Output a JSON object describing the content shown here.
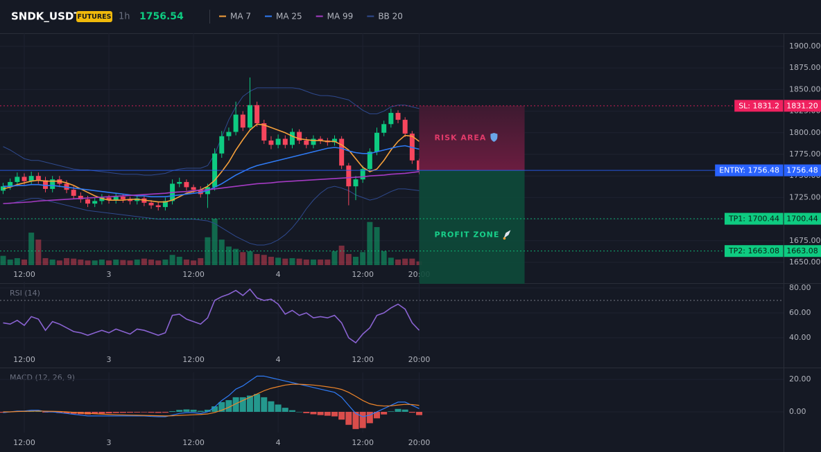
{
  "chart_data": [
    {
      "type": "candlestick",
      "title": "SNDK_USDT",
      "badge": "FUTURES",
      "interval": "1h",
      "last_price": 1756.54,
      "categories": [
        null,
        null,
        null,
        "12:00",
        null,
        null,
        null,
        null,
        null,
        null,
        null,
        null,
        null,
        null,
        null,
        "3",
        null,
        null,
        null,
        null,
        null,
        null,
        null,
        null,
        null,
        null,
        null,
        "12:00",
        null,
        null,
        null,
        null,
        null,
        null,
        null,
        null,
        null,
        null,
        null,
        "4",
        null,
        null,
        null,
        null,
        null,
        null,
        null,
        null,
        null,
        null,
        null,
        "12:00",
        null,
        null,
        null,
        null,
        null,
        null,
        null,
        "20:00"
      ],
      "open": [
        1733,
        1738,
        1743,
        1749,
        1744,
        1750,
        1745,
        1735,
        1746,
        1741,
        1734,
        1727,
        1723,
        1718,
        1721,
        1725,
        1722,
        1726,
        1723,
        1721,
        1724,
        1719,
        1716,
        1714,
        1721,
        1741,
        1743,
        1737,
        1734,
        1729,
        1737,
        1776,
        1796,
        1801,
        1821,
        1806,
        1832,
        1811,
        1791,
        1786,
        1793,
        1786,
        1801,
        1791,
        1786,
        1793,
        1791,
        1789,
        1793,
        1762,
        1738,
        1746,
        1758,
        1778,
        1800,
        1810,
        1823,
        1815,
        1799,
        1768
      ],
      "high": [
        1742,
        1747,
        1754,
        1753,
        1755,
        1754,
        1749,
        1750,
        1750,
        1745,
        1738,
        1731,
        1727,
        1725,
        1729,
        1728,
        1730,
        1729,
        1726,
        1728,
        1727,
        1722,
        1720,
        1725,
        1746,
        1748,
        1746,
        1740,
        1738,
        1741,
        1782,
        1802,
        1806,
        1836,
        1825,
        1864,
        1836,
        1815,
        1796,
        1798,
        1797,
        1805,
        1804,
        1795,
        1797,
        1796,
        1794,
        1797,
        1796,
        1765,
        1750,
        1762,
        1782,
        1806,
        1814,
        1828,
        1826,
        1818,
        1802,
        1770
      ],
      "low": [
        1729,
        1734,
        1738,
        1740,
        1740,
        1741,
        1731,
        1731,
        1737,
        1730,
        1723,
        1719,
        1714,
        1714,
        1717,
        1718,
        1718,
        1719,
        1717,
        1717,
        1715,
        1712,
        1710,
        1710,
        1717,
        1737,
        1733,
        1730,
        1725,
        1713,
        1733,
        1771,
        1791,
        1797,
        1802,
        1802,
        1807,
        1787,
        1781,
        1782,
        1782,
        1782,
        1787,
        1782,
        1782,
        1787,
        1785,
        1785,
        1758,
        1716,
        1722,
        1742,
        1754,
        1774,
        1796,
        1806,
        1811,
        1795,
        1764,
        1752
      ],
      "close": [
        1738,
        1743,
        1749,
        1744,
        1750,
        1745,
        1735,
        1746,
        1741,
        1734,
        1727,
        1723,
        1718,
        1721,
        1725,
        1722,
        1726,
        1723,
        1721,
        1724,
        1719,
        1716,
        1714,
        1721,
        1741,
        1743,
        1737,
        1734,
        1729,
        1737,
        1776,
        1796,
        1801,
        1821,
        1806,
        1832,
        1811,
        1791,
        1786,
        1793,
        1786,
        1801,
        1791,
        1786,
        1793,
        1791,
        1789,
        1793,
        1762,
        1738,
        1746,
        1758,
        1778,
        1800,
        1810,
        1823,
        1815,
        1799,
        1768,
        1756.54
      ],
      "volume": [
        20,
        12,
        15,
        12,
        70,
        55,
        15,
        12,
        10,
        15,
        14,
        12,
        10,
        10,
        12,
        10,
        12,
        11,
        10,
        12,
        14,
        12,
        10,
        12,
        22,
        18,
        12,
        10,
        15,
        60,
        100,
        55,
        40,
        35,
        28,
        30,
        24,
        22,
        18,
        16,
        14,
        15,
        14,
        12,
        12,
        12,
        12,
        30,
        42,
        24,
        18,
        28,
        93,
        82,
        30,
        16,
        12,
        14,
        14,
        8
      ],
      "up_color": "#0ecb81",
      "down_color": "#f6465d",
      "ylim": [
        1646.8,
        1915.2
      ],
      "yticks": [
        {
          "value": 1650,
          "label": "1650.00"
        },
        {
          "value": 1675,
          "label": "1675.00"
        },
        {
          "value": 1700,
          "label": "1700.00"
        },
        {
          "value": 1725,
          "label": "1725.00"
        },
        {
          "value": 1750,
          "label": "1750.00"
        },
        {
          "value": 1775,
          "label": "1775.00"
        },
        {
          "value": 1800,
          "label": "1800.00"
        },
        {
          "value": 1825,
          "label": "1825.00"
        },
        {
          "value": 1850,
          "label": "1850.00"
        },
        {
          "value": 1875,
          "label": "1875.00"
        },
        {
          "value": 1900,
          "label": "1900.00"
        }
      ],
      "grid": true,
      "series": [
        {
          "name": "MA 7",
          "color": "#f7a13b",
          "values": [
            1735,
            1737,
            1740,
            1742,
            1744,
            1745,
            1744,
            1744,
            1744,
            1742,
            1739,
            1735,
            1731,
            1727,
            1724,
            1722,
            1722,
            1722,
            1723,
            1723,
            1722,
            1721,
            1720,
            1720,
            1722,
            1726,
            1730,
            1732,
            1734,
            1738,
            1745,
            1755,
            1766,
            1780,
            1792,
            1803,
            1810,
            1809,
            1806,
            1803,
            1800,
            1796,
            1793,
            1792,
            1791,
            1791,
            1790,
            1790,
            1786,
            1780,
            1770,
            1760,
            1755,
            1758,
            1768,
            1780,
            1790,
            1797,
            1796,
            1790
          ]
        },
        {
          "name": "MA 25",
          "color": "#2f7bf5",
          "values": [
            1738,
            1738,
            1739,
            1739,
            1740,
            1740,
            1739,
            1739,
            1738,
            1737,
            1736,
            1735,
            1734,
            1733,
            1732,
            1731,
            1730,
            1729,
            1728,
            1727,
            1727,
            1726,
            1726,
            1726,
            1727,
            1728,
            1729,
            1730,
            1731,
            1733,
            1737,
            1741,
            1746,
            1751,
            1755,
            1759,
            1762,
            1764,
            1766,
            1768,
            1770,
            1772,
            1774,
            1776,
            1778,
            1780,
            1782,
            1783,
            1782,
            1779,
            1777,
            1776,
            1776,
            1778,
            1780,
            1782,
            1784,
            1785,
            1783,
            1781
          ]
        },
        {
          "name": "MA 99",
          "color": "#a53bc4",
          "values": [
            1718,
            1718.5,
            1719,
            1719.5,
            1720,
            1721,
            1721.5,
            1722,
            1722.5,
            1723,
            1723.5,
            1724,
            1724.5,
            1725,
            1725.5,
            1726,
            1726.5,
            1727,
            1727.5,
            1728,
            1728.5,
            1729,
            1729.5,
            1730,
            1731,
            1731.5,
            1732,
            1733,
            1733.5,
            1734,
            1735,
            1736,
            1737,
            1738,
            1739,
            1740,
            1741,
            1741.5,
            1742,
            1743,
            1743.5,
            1744,
            1744.5,
            1745,
            1745.5,
            1746,
            1746.5,
            1747,
            1747.5,
            1748,
            1748.5,
            1749,
            1750,
            1750.5,
            1751,
            1752,
            1752.5,
            1753,
            1754,
            1755
          ]
        },
        {
          "name": "BB 20",
          "color": "#2f4a8f",
          "upper": [
            1784,
            1780,
            1775,
            1770,
            1768,
            1768,
            1766,
            1764,
            1762,
            1760,
            1758,
            1757,
            1757,
            1756,
            1755,
            1754,
            1753,
            1752,
            1752,
            1752,
            1751,
            1751,
            1752,
            1753,
            1756,
            1758,
            1759,
            1759,
            1759,
            1762,
            1775,
            1795,
            1815,
            1830,
            1842,
            1848,
            1852,
            1852,
            1852,
            1852,
            1852,
            1852,
            1851,
            1848,
            1845,
            1843,
            1843,
            1842,
            1840,
            1838,
            1832,
            1826,
            1822,
            1822,
            1825,
            1830,
            1832,
            1832,
            1830,
            1828
          ],
          "lower": [
            1718,
            1718,
            1720,
            1722,
            1724,
            1724,
            1722,
            1720,
            1718,
            1716,
            1714,
            1712,
            1710,
            1709,
            1708,
            1707,
            1706,
            1705,
            1704,
            1703,
            1702,
            1701,
            1700,
            1700,
            1700,
            1700,
            1700,
            1700,
            1699,
            1698,
            1695,
            1690,
            1685,
            1680,
            1676,
            1672,
            1670,
            1670,
            1672,
            1676,
            1682,
            1690,
            1700,
            1712,
            1722,
            1730,
            1736,
            1738,
            1736,
            1733,
            1728,
            1725,
            1722,
            1724,
            1728,
            1732,
            1735,
            1735,
            1734,
            1733
          ]
        }
      ],
      "levels": [
        {
          "label": "SL: 1831.2",
          "value": 1831.2,
          "value_label": "1831.20",
          "color": "#f0215f",
          "text_color": "#ffffff",
          "style": "dotted"
        },
        {
          "label": "ENTRY: 1756.48",
          "value": 1756.48,
          "value_label": "1756.48",
          "color": "#2962ff",
          "text_color": "#ffffff",
          "style": "solid"
        },
        {
          "label": "TP1: 1700.44",
          "value": 1700.44,
          "value_label": "1700.44",
          "color": "#0ecb81",
          "text_color": "#0b1e16",
          "style": "dotted"
        },
        {
          "label": "TP2: 1663.08",
          "value": 1663.08,
          "value_label": "1663.08",
          "color": "#0ecb81",
          "text_color": "#0b1e16",
          "style": "dotted"
        }
      ],
      "zones": [
        {
          "label": "RISK AREA",
          "color": "#e23a6a"
        },
        {
          "label": "PROFIT ZONE",
          "color": "#18d08a"
        }
      ]
    },
    {
      "type": "line",
      "title": "RSI (14)",
      "color": "#8a63d2",
      "values": [
        52,
        51,
        54,
        50,
        57,
        55,
        46,
        53,
        51,
        48,
        45,
        44,
        42,
        44,
        46,
        44,
        47,
        45,
        43,
        47,
        46,
        44,
        42,
        44,
        58,
        59,
        55,
        53,
        51,
        56,
        70,
        73,
        75,
        78,
        74,
        79,
        72,
        70,
        71,
        67,
        59,
        62,
        58,
        60,
        56,
        57,
        56,
        58,
        52,
        40,
        36,
        43,
        48,
        58,
        60,
        64,
        67,
        63,
        52,
        46
      ],
      "ylim": [
        30,
        85
      ],
      "yticks": [
        {
          "value": 40,
          "label": "40.00"
        },
        {
          "value": 60,
          "label": "60.00"
        },
        {
          "value": 80,
          "label": "80.00"
        }
      ],
      "reference_line": 70
    },
    {
      "type": "macd",
      "title": "MACD (12, 26, 9)",
      "macd": {
        "color": "#2f7bf5",
        "values": [
          -0.5,
          0,
          0.5,
          0.5,
          1,
          1,
          0,
          0,
          -0.5,
          -1,
          -1.5,
          -2,
          -2.5,
          -2.5,
          -2.5,
          -2.5,
          -2.5,
          -2.5,
          -2.5,
          -2.5,
          -2.5,
          -2.8,
          -3,
          -3,
          -2,
          -1,
          -0.5,
          -0.5,
          -1,
          0,
          3,
          7,
          10,
          14,
          16,
          19,
          22,
          22,
          21,
          20,
          19,
          18,
          17,
          16,
          15,
          14,
          13,
          12,
          9,
          4,
          -1,
          -3,
          -2,
          0,
          2,
          4,
          6,
          6,
          4,
          2
        ]
      },
      "signal": {
        "color": "#f0862a",
        "values": [
          0,
          0,
          0.2,
          0.3,
          0.4,
          0.5,
          0.4,
          0.3,
          0.2,
          0,
          -0.3,
          -0.6,
          -0.9,
          -1.2,
          -1.4,
          -1.6,
          -1.8,
          -1.9,
          -2,
          -2.1,
          -2.2,
          -2.3,
          -2.4,
          -2.5,
          -2.4,
          -2.2,
          -2,
          -1.8,
          -1.6,
          -1.3,
          -0.4,
          1,
          2.8,
          5,
          7,
          9,
          11,
          13,
          14.5,
          15.5,
          16.5,
          17,
          17,
          16.8,
          16.5,
          16,
          15.4,
          14.8,
          13.8,
          12,
          9.6,
          7,
          5,
          4,
          3.6,
          3.7,
          4.2,
          4.6,
          4.5,
          4
        ]
      },
      "histogram": [
        -0.5,
        0,
        0.3,
        0.2,
        0.6,
        0.5,
        -0.4,
        -0.3,
        -0.7,
        -1,
        -1.2,
        -1.4,
        -1.6,
        -1.3,
        -1.1,
        -0.9,
        -0.7,
        -0.6,
        -0.5,
        -0.4,
        -0.3,
        -0.5,
        -0.6,
        -0.5,
        0.4,
        1.2,
        1.5,
        1.3,
        0.6,
        1.3,
        3.4,
        6,
        7.2,
        9,
        9,
        10,
        11,
        9,
        6.5,
        4.5,
        2.5,
        1,
        0,
        -0.8,
        -1.5,
        -2,
        -2.4,
        -2.8,
        -4.8,
        -8,
        -10.6,
        -10,
        -7,
        -4,
        -1.6,
        0.3,
        1.8,
        1.4,
        -0.5,
        -2
      ],
      "up_color": "#26a69a",
      "down_color": "#ef5350",
      "ylim": [
        -12.8,
        24.3
      ],
      "yticks": [
        {
          "value": 0,
          "label": "0.00"
        },
        {
          "value": 20,
          "label": "20.00"
        }
      ]
    }
  ]
}
